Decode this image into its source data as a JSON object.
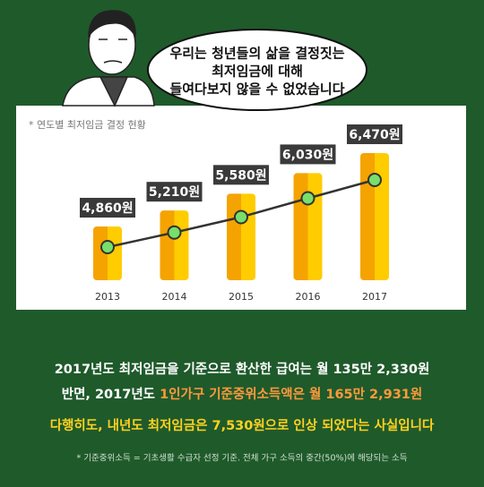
{
  "speech": [
    "우리는 청년들의 삶을 결정짓는",
    "최저임금에 대해",
    "들여다보지 않을 수 없었습니다"
  ],
  "chart_data": {
    "type": "bar",
    "note": "* 연도별 최저임금 결정 현황",
    "categories": [
      "2013",
      "2014",
      "2015",
      "2016",
      "2017"
    ],
    "values": [
      4860,
      5210,
      5580,
      6030,
      6470
    ],
    "value_labels": [
      "4,860원",
      "5,210원",
      "5,580원",
      "6,030원",
      "6,470원"
    ],
    "colors": [
      "#f5a300",
      "#ffcc00"
    ],
    "line_color": "#78e06a"
  },
  "summary": {
    "line1": "2017년도 최저임금을 기준으로 환산한 급여는 월 135만 2,330원",
    "line2": [
      "반면, 2017년도 ",
      "1인가구 기준중위소득액은 월 165만 2,931원"
    ],
    "line3": "다행히도, 내년도 최저임금은 7,530원으로 인상 되었다는 사실입니다",
    "footnote": "* 기준중위소득 = 기초생활 수급자 선정 기준. 전체 가구 소득의 중간(50%)에 해당되는 소득"
  }
}
